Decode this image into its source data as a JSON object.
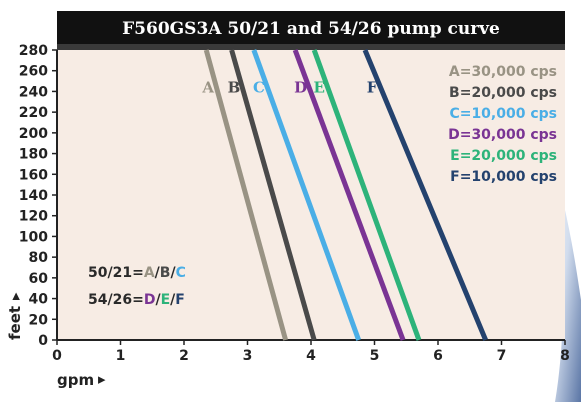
{
  "chart_data": {
    "type": "line",
    "title": "F560GS3A 50/21 and 54/26 pump curve",
    "xlabel": "gpm",
    "ylabel": "feet",
    "xlim": [
      0,
      8
    ],
    "ylim": [
      0,
      280
    ],
    "x_ticks": [
      "0",
      "1",
      "2",
      "3",
      "4",
      "5",
      "6",
      "7",
      "8"
    ],
    "y_ticks": [
      "0",
      "20",
      "40",
      "60",
      "80",
      "100",
      "120",
      "140",
      "160",
      "180",
      "200",
      "220",
      "240",
      "260",
      "280"
    ],
    "grid": false,
    "legend_position": "top-right",
    "series": [
      {
        "letter": "A",
        "legend": "A=30,000 cps",
        "color": "#999384",
        "x": [
          2.35,
          3.6
        ],
        "y": [
          280,
          0
        ]
      },
      {
        "letter": "B",
        "legend": "B=20,000 cps",
        "color": "#4a4a4a",
        "x": [
          2.75,
          4.05
        ],
        "y": [
          280,
          0
        ]
      },
      {
        "letter": "C",
        "legend": "C=10,000 cps",
        "color": "#4aaee6",
        "x": [
          3.1,
          4.75
        ],
        "y": [
          280,
          0
        ]
      },
      {
        "letter": "D",
        "legend": "D=30,000 cps",
        "color": "#7a3494",
        "x": [
          3.75,
          5.45
        ],
        "y": [
          280,
          0
        ]
      },
      {
        "letter": "E",
        "legend": "E=20,000 cps",
        "color": "#2db37a",
        "x": [
          4.05,
          5.7
        ],
        "y": [
          280,
          0
        ]
      },
      {
        "letter": "F",
        "legend": "F=10,000 cps",
        "color": "#24426e",
        "x": [
          4.85,
          6.75
        ],
        "y": [
          280,
          0
        ]
      }
    ],
    "annotations": [
      {
        "prefix": "50/21=",
        "letters": [
          "A",
          "B",
          "C"
        ]
      },
      {
        "prefix": "54/26=",
        "letters": [
          "D",
          "E",
          "F"
        ]
      }
    ]
  }
}
